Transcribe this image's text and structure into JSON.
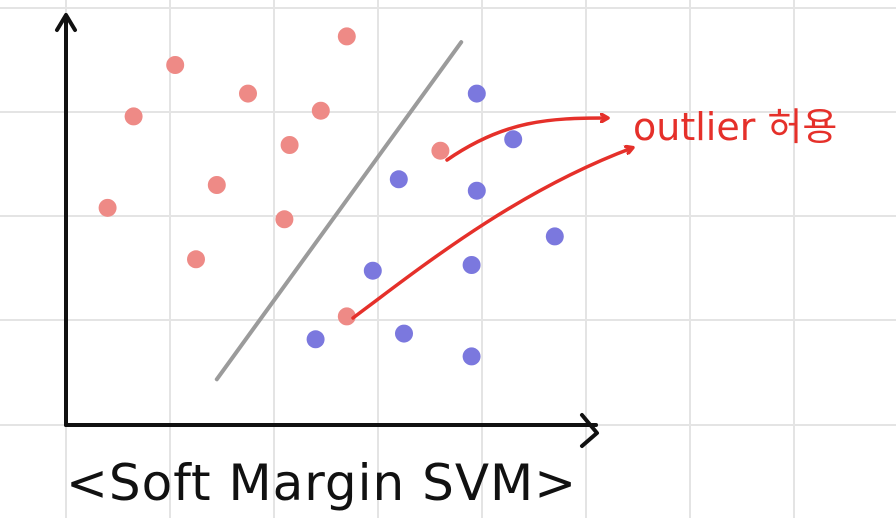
{
  "caption": "<Soft Margin SVM>",
  "annotation": "outlier 허용",
  "colors": {
    "class_a": "#ee8a86",
    "class_b": "#7b78de",
    "arrow": "#e5302a",
    "separator": "#9b9b9b",
    "axis": "#111111",
    "grid": "#e4e4e4"
  },
  "chart_data": {
    "type": "scatter",
    "xlim": [
      0,
      10
    ],
    "ylim": [
      0,
      7
    ],
    "grid": true,
    "series": [
      {
        "class": "a",
        "points": [
          [
            5.4,
            6.8
          ],
          [
            2.1,
            6.3
          ],
          [
            3.5,
            5.8
          ],
          [
            4.9,
            5.5
          ],
          [
            1.3,
            5.4
          ],
          [
            4.3,
            4.9
          ],
          [
            2.9,
            4.2
          ],
          [
            0.8,
            3.8
          ],
          [
            4.2,
            3.6
          ],
          [
            2.5,
            2.9
          ],
          [
            7.2,
            4.8
          ],
          [
            5.4,
            1.9
          ]
        ]
      },
      {
        "class": "b",
        "points": [
          [
            7.9,
            5.8
          ],
          [
            8.6,
            5.0
          ],
          [
            6.4,
            4.3
          ],
          [
            7.9,
            4.1
          ],
          [
            9.4,
            3.3
          ],
          [
            5.9,
            2.7
          ],
          [
            7.8,
            2.8
          ],
          [
            4.8,
            1.5
          ],
          [
            6.5,
            1.6
          ],
          [
            7.8,
            1.2
          ]
        ]
      }
    ],
    "separator": [
      [
        2.9,
        0.8
      ],
      [
        7.6,
        6.7
      ]
    ],
    "outliers": [
      [
        7.2,
        4.8
      ],
      [
        5.4,
        1.9
      ]
    ]
  }
}
